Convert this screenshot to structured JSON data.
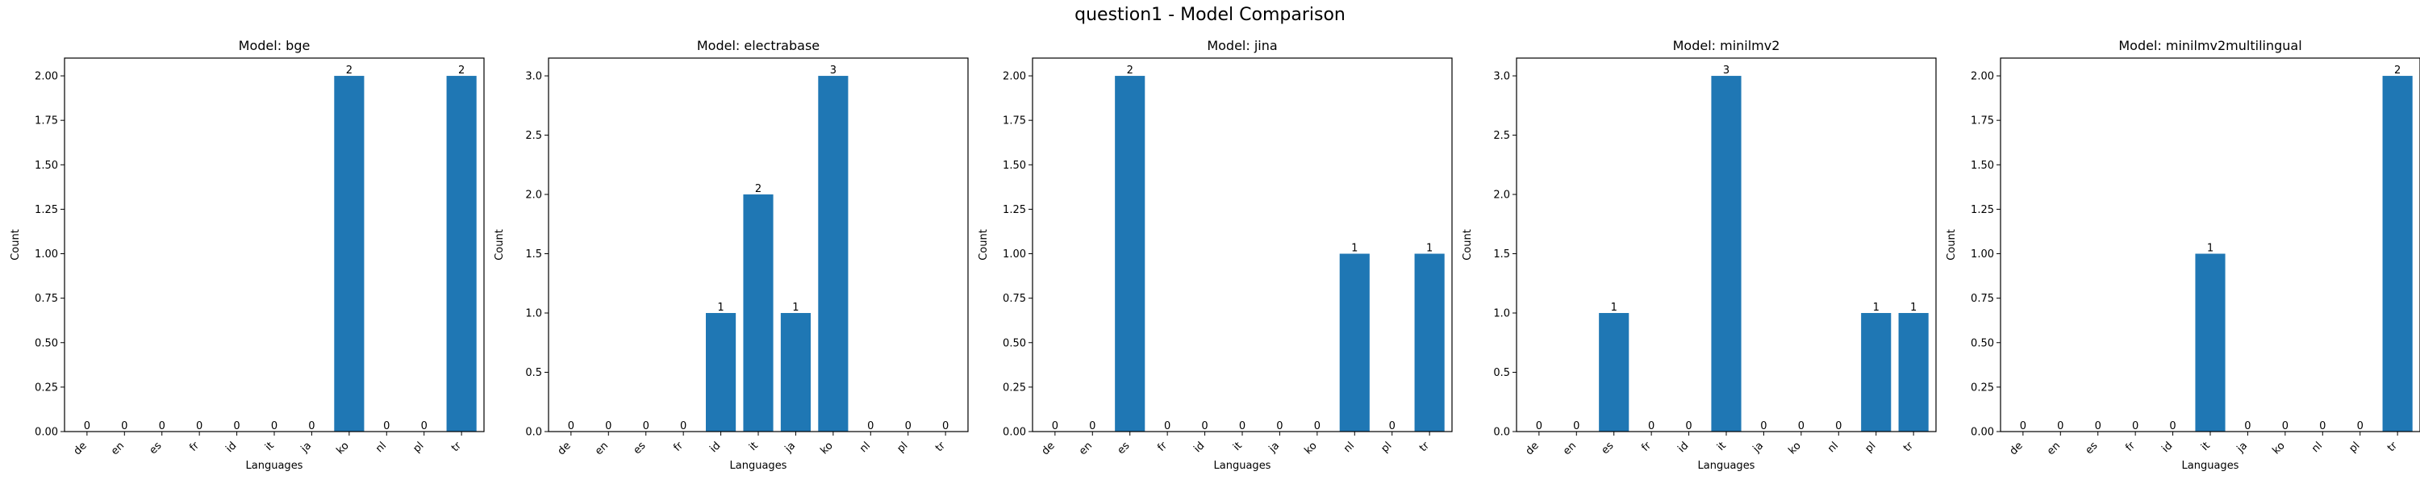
{
  "suptitle": "question1 - Model Comparison",
  "colors": {
    "bar": "#1f77b4",
    "axis": "#000000"
  },
  "chart_data": [
    {
      "type": "bar",
      "title": "Model: bge",
      "xlabel": "Languages",
      "ylabel": "Count",
      "categories": [
        "de",
        "en",
        "es",
        "fr",
        "id",
        "it",
        "ja",
        "ko",
        "nl",
        "pl",
        "tr"
      ],
      "values": [
        0,
        0,
        0,
        0,
        0,
        0,
        0,
        2,
        0,
        0,
        2
      ],
      "ylim": [
        0,
        2.1
      ],
      "yticks": [
        "0.00",
        "0.25",
        "0.50",
        "0.75",
        "1.00",
        "1.25",
        "1.50",
        "1.75",
        "2.00"
      ],
      "ytick_values": [
        0,
        0.25,
        0.5,
        0.75,
        1.0,
        1.25,
        1.5,
        1.75,
        2.0
      ],
      "value_labels": [
        "0",
        "0",
        "0",
        "0",
        "0",
        "0",
        "0",
        "2",
        "0",
        "0",
        "2"
      ],
      "grid": false
    },
    {
      "type": "bar",
      "title": "Model: electrabase",
      "xlabel": "Languages",
      "ylabel": "Count",
      "categories": [
        "de",
        "en",
        "es",
        "fr",
        "id",
        "it",
        "ja",
        "ko",
        "nl",
        "pl",
        "tr"
      ],
      "values": [
        0,
        0,
        0,
        0,
        1,
        2,
        1,
        3,
        0,
        0,
        0
      ],
      "ylim": [
        0,
        3.15
      ],
      "yticks": [
        "0.0",
        "0.5",
        "1.0",
        "1.5",
        "2.0",
        "2.5",
        "3.0"
      ],
      "ytick_values": [
        0,
        0.5,
        1.0,
        1.5,
        2.0,
        2.5,
        3.0
      ],
      "value_labels": [
        "0",
        "0",
        "0",
        "0",
        "1",
        "2",
        "1",
        "3",
        "0",
        "0",
        "0"
      ],
      "grid": false
    },
    {
      "type": "bar",
      "title": "Model: jina",
      "xlabel": "Languages",
      "ylabel": "Count",
      "categories": [
        "de",
        "en",
        "es",
        "fr",
        "id",
        "it",
        "ja",
        "ko",
        "nl",
        "pl",
        "tr"
      ],
      "values": [
        0,
        0,
        2,
        0,
        0,
        0,
        0,
        0,
        1,
        0,
        1
      ],
      "ylim": [
        0,
        2.1
      ],
      "yticks": [
        "0.00",
        "0.25",
        "0.50",
        "0.75",
        "1.00",
        "1.25",
        "1.50",
        "1.75",
        "2.00"
      ],
      "ytick_values": [
        0,
        0.25,
        0.5,
        0.75,
        1.0,
        1.25,
        1.5,
        1.75,
        2.0
      ],
      "value_labels": [
        "0",
        "0",
        "2",
        "0",
        "0",
        "0",
        "0",
        "0",
        "1",
        "0",
        "1"
      ],
      "grid": false
    },
    {
      "type": "bar",
      "title": "Model: minilmv2",
      "xlabel": "Languages",
      "ylabel": "Count",
      "categories": [
        "de",
        "en",
        "es",
        "fr",
        "id",
        "it",
        "ja",
        "ko",
        "nl",
        "pl",
        "tr"
      ],
      "values": [
        0,
        0,
        1,
        0,
        0,
        3,
        0,
        0,
        0,
        1,
        1
      ],
      "ylim": [
        0,
        3.15
      ],
      "yticks": [
        "0.0",
        "0.5",
        "1.0",
        "1.5",
        "2.0",
        "2.5",
        "3.0"
      ],
      "ytick_values": [
        0,
        0.5,
        1.0,
        1.5,
        2.0,
        2.5,
        3.0
      ],
      "value_labels": [
        "0",
        "0",
        "1",
        "0",
        "0",
        "3",
        "0",
        "0",
        "0",
        "1",
        "1"
      ],
      "grid": false
    },
    {
      "type": "bar",
      "title": "Model: minilmv2multilingual",
      "xlabel": "Languages",
      "ylabel": "Count",
      "categories": [
        "de",
        "en",
        "es",
        "fr",
        "id",
        "it",
        "ja",
        "ko",
        "nl",
        "pl",
        "tr"
      ],
      "values": [
        0,
        0,
        0,
        0,
        0,
        1,
        0,
        0,
        0,
        0,
        2
      ],
      "ylim": [
        0,
        2.1
      ],
      "yticks": [
        "0.00",
        "0.25",
        "0.50",
        "0.75",
        "1.00",
        "1.25",
        "1.50",
        "1.75",
        "2.00"
      ],
      "ytick_values": [
        0,
        0.25,
        0.5,
        0.75,
        1.0,
        1.25,
        1.5,
        1.75,
        2.0
      ],
      "value_labels": [
        "0",
        "0",
        "0",
        "0",
        "0",
        "1",
        "0",
        "0",
        "0",
        "0",
        "2"
      ],
      "grid": false
    }
  ]
}
